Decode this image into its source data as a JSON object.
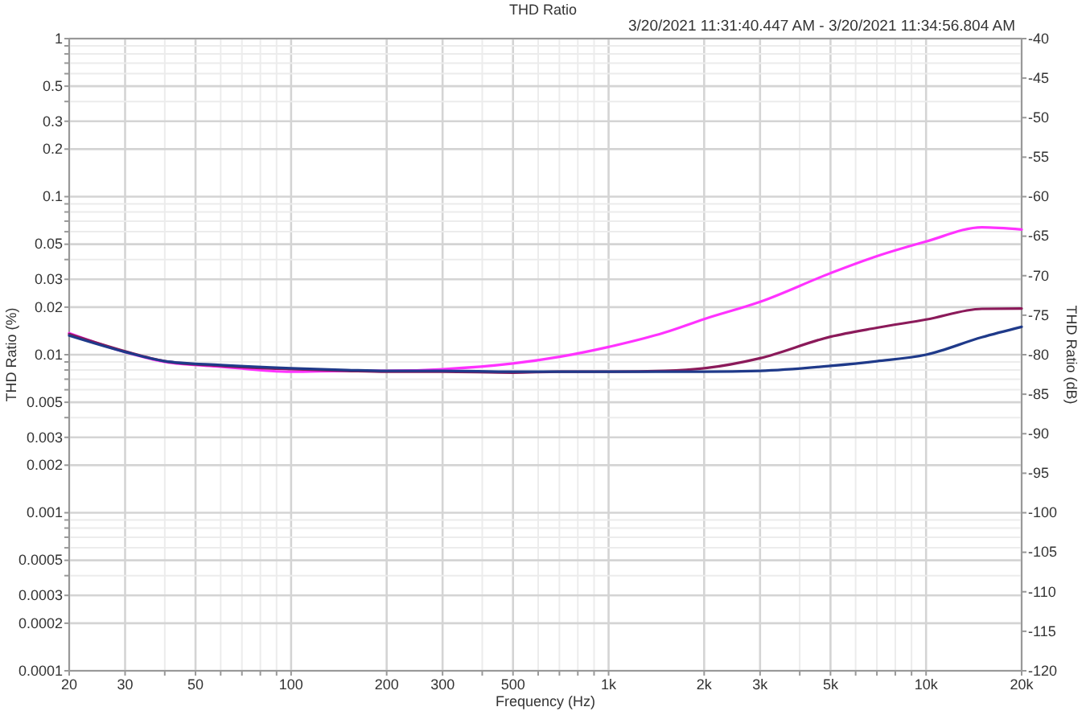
{
  "chart_data": {
    "type": "line",
    "title": "THD Ratio",
    "xlabel": "Frequency (Hz)",
    "ylabel": "THD Ratio (%)",
    "y2label": "THD Ratio (dB)",
    "annotations": [
      "3/20/2021 11:31:40.447 AM - 3/20/2021 11:34:56.804 AM"
    ],
    "log": "xy",
    "grid": true,
    "line_style": "solid",
    "xlim": [
      20,
      20000
    ],
    "xticks": [
      20,
      30,
      {
        "value": 40,
        "label": null
      },
      50,
      {
        "value": 60,
        "label": null
      },
      {
        "value": 70,
        "label": null
      },
      {
        "value": 80,
        "label": null
      },
      {
        "value": 90,
        "label": null
      },
      100,
      200,
      300,
      {
        "value": 400,
        "label": null
      },
      500,
      {
        "value": 600,
        "label": null
      },
      {
        "value": 700,
        "label": null
      },
      {
        "value": 800,
        "label": null
      },
      {
        "value": 900,
        "label": null
      },
      {
        "value": 1000,
        "label": "1k"
      },
      {
        "value": 2000,
        "label": "2k"
      },
      {
        "value": 3000,
        "label": "3k"
      },
      {
        "value": 4000,
        "label": null
      },
      {
        "value": 5000,
        "label": "5k"
      },
      {
        "value": 6000,
        "label": null
      },
      {
        "value": 7000,
        "label": null
      },
      {
        "value": 8000,
        "label": null
      },
      {
        "value": 9000,
        "label": null
      },
      {
        "value": 10000,
        "label": "10k"
      },
      {
        "value": 20000,
        "label": "20k"
      }
    ],
    "ylim": [
      0.0001,
      1
    ],
    "yticks": [
      0.0001,
      0.0002,
      0.0003,
      {
        "value": 0.0004,
        "label": null
      },
      0.0005,
      {
        "value": 0.0006,
        "label": null
      },
      {
        "value": 0.0007,
        "label": null
      },
      {
        "value": 0.0008,
        "label": null
      },
      {
        "value": 0.0009,
        "label": null
      },
      0.001,
      0.002,
      0.003,
      {
        "value": 0.004,
        "label": null
      },
      0.005,
      {
        "value": 0.006,
        "label": null
      },
      {
        "value": 0.007,
        "label": null
      },
      {
        "value": 0.008,
        "label": null
      },
      {
        "value": 0.009,
        "label": null
      },
      0.01,
      0.02,
      0.03,
      {
        "value": 0.04,
        "label": null
      },
      0.05,
      {
        "value": 0.06,
        "label": null
      },
      {
        "value": 0.07,
        "label": null
      },
      {
        "value": 0.08,
        "label": null
      },
      {
        "value": 0.09,
        "label": null
      },
      0.1,
      0.2,
      0.3,
      {
        "value": 0.4,
        "label": null
      },
      0.5,
      {
        "value": 0.6,
        "label": null
      },
      {
        "value": 0.7,
        "label": null
      },
      {
        "value": 0.8,
        "label": null
      },
      {
        "value": 0.9,
        "label": null
      },
      1
    ],
    "y2lim": [
      -120,
      -40
    ],
    "y2ticks": [
      -120,
      -115,
      -110,
      -105,
      -100,
      -95,
      -90,
      -85,
      -80,
      -75,
      -70,
      -65,
      -60,
      -55,
      -50,
      -45,
      -40
    ],
    "x": [
      20,
      30,
      40,
      60,
      100,
      150,
      200,
      300,
      500,
      700,
      1000,
      1500,
      2000,
      3000,
      5000,
      7000,
      10000,
      15000,
      20000
    ],
    "series": [
      {
        "color": "#ff33ff",
        "values": [
          0.0137,
          0.0104,
          0.009,
          0.0084,
          0.0078,
          0.0079,
          0.0079,
          0.0081,
          0.0088,
          0.0097,
          0.0112,
          0.0138,
          0.0168,
          0.0216,
          0.0328,
          0.042,
          0.052,
          0.064,
          0.062
        ]
      },
      {
        "color": "#8b1a5a",
        "values": [
          0.0135,
          0.0105,
          0.0091,
          0.0085,
          0.0081,
          0.0079,
          0.0078,
          0.0078,
          0.0077,
          0.0078,
          0.0078,
          0.0079,
          0.0082,
          0.0095,
          0.013,
          0.0148,
          0.0167,
          0.0195,
          0.0196
        ]
      },
      {
        "color": "#1f3a8a",
        "values": [
          0.0132,
          0.0104,
          0.0091,
          0.0086,
          0.0082,
          0.008,
          0.0079,
          0.0079,
          0.0078,
          0.0078,
          0.0078,
          0.0078,
          0.0078,
          0.0079,
          0.0085,
          0.0091,
          0.01,
          0.0129,
          0.015
        ]
      }
    ]
  }
}
